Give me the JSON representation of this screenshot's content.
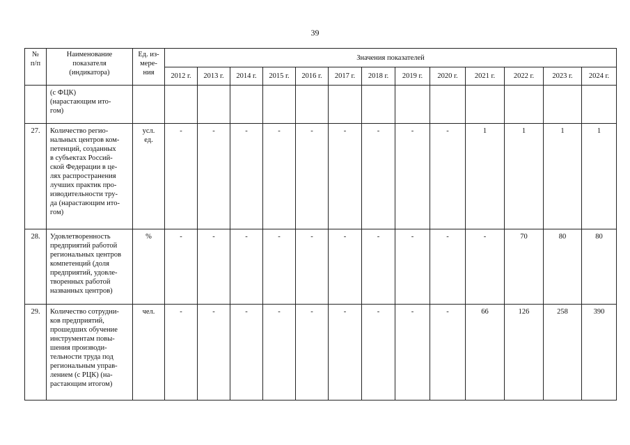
{
  "page_number": "39",
  "table": {
    "headers": {
      "number": "№\nп/п",
      "name": "Наименование\nпоказателя\n(индикатора)",
      "unit": "Ед. из-\nмере-\nния",
      "values_group": "Значения показателей",
      "years": [
        "2012 г.",
        "2013 г.",
        "2014 г.",
        "2015 г.",
        "2016 г.",
        "2017 г.",
        "2018 г.",
        "2019 г.",
        "2020 г.",
        "2021 г.",
        "2022 г.",
        "2023 г.",
        "2024 г."
      ]
    },
    "rows": [
      {
        "number": "",
        "name": "(с ФЦК)\n(нарастающим ито-\nгом)",
        "unit": "",
        "values": [
          "",
          "",
          "",
          "",
          "",
          "",
          "",
          "",
          "",
          "",
          "",
          "",
          ""
        ]
      },
      {
        "number": "27.",
        "name": "Количество регио-\nнальных центров ком-\nпетенций, созданных\nв субъектах Россий-\nской Федерации в це-\nлях распространения\nлучших практик про-\nизводительности тру-\nда (нарастающим ито-\nгом)",
        "unit": "усл.\nед.",
        "values": [
          "-",
          "-",
          "-",
          "-",
          "-",
          "-",
          "-",
          "-",
          "-",
          "1",
          "1",
          "1",
          "1"
        ]
      },
      {
        "number": "28.",
        "name": "Удовлетворенность\nпредприятий работой\nрегиональных центров\nкомпетенций (доля\nпредприятий, удовле-\nтворенных работой\nназванных центров)",
        "unit": "%",
        "values": [
          "-",
          "-",
          "-",
          "-",
          "-",
          "-",
          "-",
          "-",
          "-",
          "-",
          "70",
          "80",
          "80"
        ]
      },
      {
        "number": "29.",
        "name": "Количество сотрудни-\nков предприятий,\nпрошедших обучение\nинструментам повы-\nшения производи-\nтельности труда под\nрегиональным управ-\nлением (с РЦК) (на-\nрастающим итогом)",
        "unit": "чел.",
        "values": [
          "-",
          "-",
          "-",
          "-",
          "-",
          "-",
          "-",
          "-",
          "-",
          "66",
          "126",
          "258",
          "390"
        ]
      }
    ]
  }
}
